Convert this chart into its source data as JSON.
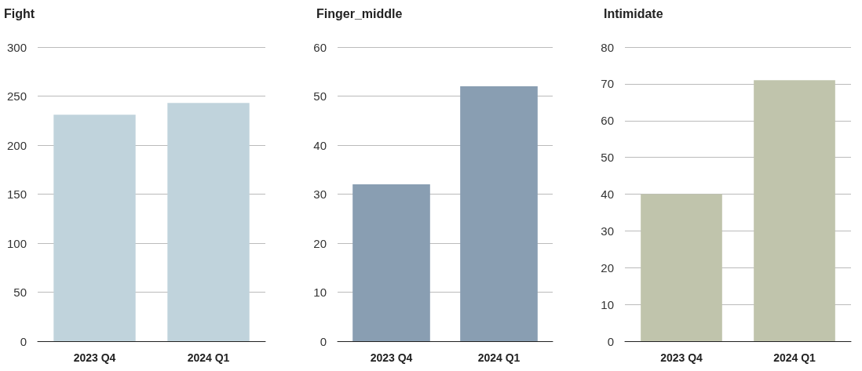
{
  "chart_data": [
    {
      "type": "bar",
      "title": "Fight",
      "categories": [
        "2023 Q4",
        "2024 Q1"
      ],
      "values": [
        231,
        243
      ],
      "color": "#c0d3dc",
      "ylim": [
        0,
        300
      ],
      "yticks": [
        0,
        50,
        100,
        150,
        200,
        250,
        300
      ],
      "grid": "y"
    },
    {
      "type": "bar",
      "title": "Finger_middle",
      "categories": [
        "2023 Q4",
        "2024 Q1"
      ],
      "values": [
        32,
        52
      ],
      "color": "#899eb2",
      "ylim": [
        0,
        60
      ],
      "yticks": [
        0,
        10,
        20,
        30,
        40,
        50,
        60
      ],
      "grid": "y"
    },
    {
      "type": "bar",
      "title": "Intimidate",
      "categories": [
        "2023 Q4",
        "2024 Q1"
      ],
      "values": [
        40,
        71
      ],
      "color": "#c0c4ac",
      "ylim": [
        0,
        80
      ],
      "yticks": [
        0,
        10,
        20,
        30,
        40,
        50,
        60,
        70,
        80
      ],
      "grid": "y"
    }
  ]
}
